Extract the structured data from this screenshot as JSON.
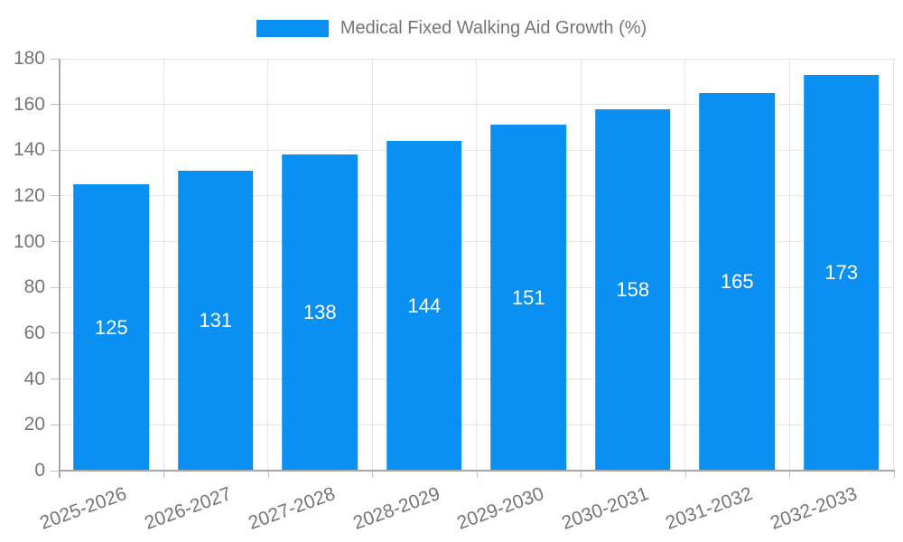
{
  "chart_data": {
    "type": "bar",
    "title": "",
    "xlabel": "",
    "ylabel": "",
    "categories": [
      "2025-2026",
      "2026-2027",
      "2027-2028",
      "2028-2029",
      "2029-2030",
      "2030-2031",
      "2031-2032",
      "2032-2033"
    ],
    "series": [
      {
        "name": "Medical Fixed Walking Aid Growth (%)",
        "values": [
          125,
          131,
          138,
          144,
          151,
          158,
          165,
          173
        ]
      }
    ],
    "value_labels_shown": true,
    "ylim": [
      0,
      180
    ],
    "yticks": [
      0,
      20,
      40,
      60,
      80,
      100,
      120,
      140,
      160,
      180
    ],
    "grid": true,
    "legend_position": "top",
    "x_label_rotation_deg": -20,
    "colors": {
      "bar": "#0a8ff2",
      "text": "#757575",
      "axis": "#a8a8a8",
      "grid": "#e6e6e6",
      "tick": "#c2c2c2",
      "value_label": "#ffffff"
    }
  }
}
